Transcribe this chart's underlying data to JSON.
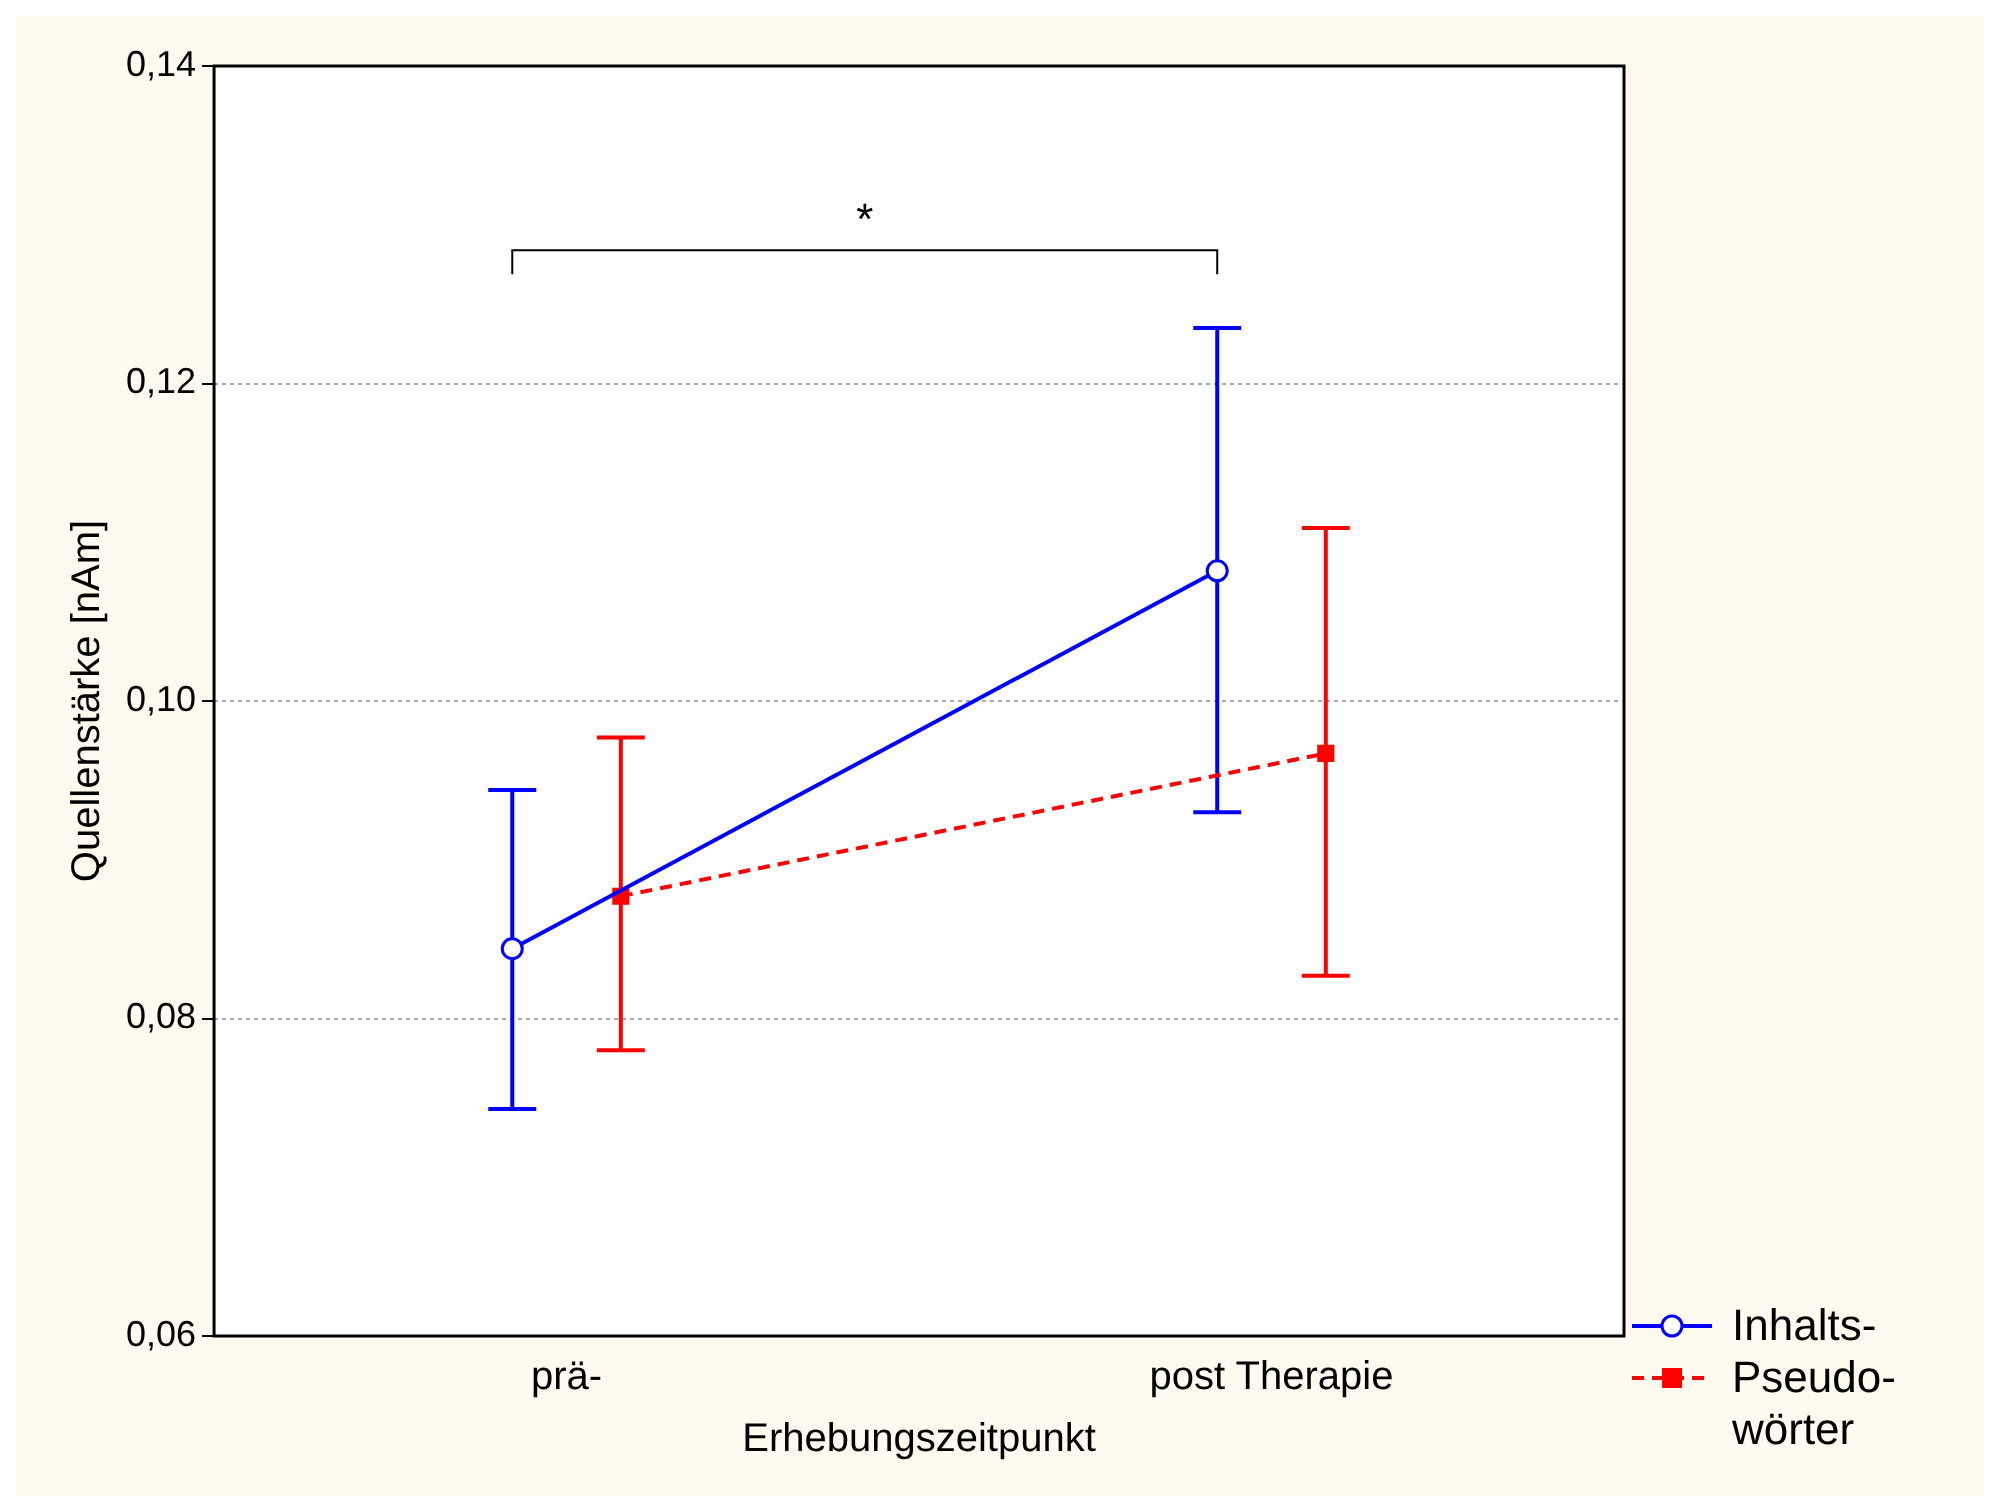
{
  "chart_data": {
    "type": "line",
    "xlabel": "Erhebungszeitpunkt",
    "ylabel": "Quellenstärke [nAm]",
    "categories": [
      "prä-",
      "post Therapie"
    ],
    "series": [
      {
        "name": "Inhalts-",
        "color": "#0000ff",
        "values": [
          0.0844,
          0.1082
        ],
        "errors": [
          [
            0.0743,
            0.0944
          ],
          [
            0.093,
            0.1235
          ]
        ],
        "marker": "circle",
        "line_style": "solid"
      },
      {
        "name": "Pseudo- wörter",
        "color": "#ff0000",
        "values": [
          0.0877,
          0.0967
        ],
        "errors": [
          [
            0.078,
            0.0977
          ],
          [
            0.0827,
            0.1109
          ]
        ],
        "marker": "square",
        "line_style": "dashed"
      }
    ],
    "ylim": [
      0.06,
      0.14
    ],
    "yticks": [
      {
        "value": 0.06,
        "label": "0,06"
      },
      {
        "value": 0.08,
        "label": "0,08"
      },
      {
        "value": 0.1,
        "label": "0,10"
      },
      {
        "value": 0.12,
        "label": "0,12"
      },
      {
        "value": 0.14,
        "label": "0,14"
      }
    ],
    "grid": "y",
    "legend": "bottom right",
    "annotations": [
      "*"
    ]
  }
}
